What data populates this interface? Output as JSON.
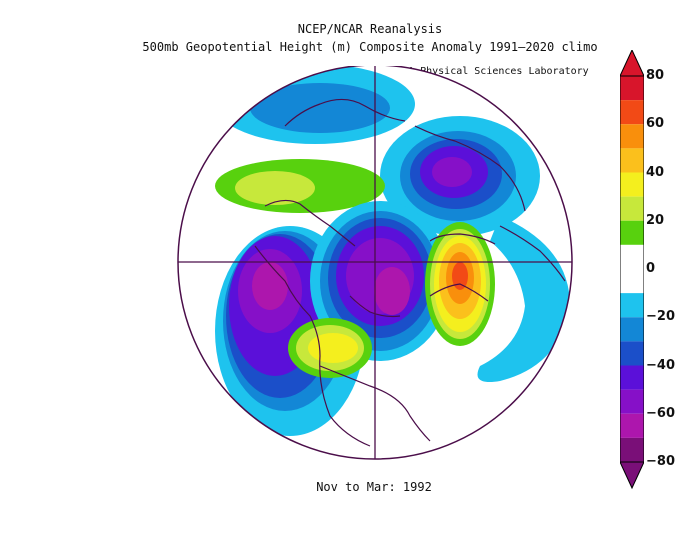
{
  "titles": {
    "line1": "NCEP/NCAR Reanalysis",
    "line2": "500mb Geopotential Height (m) Composite Anomaly 1991–2020 climo",
    "credit": "NOAA Physical Sciences Laboratory",
    "period": "Nov to Mar: 1992"
  },
  "colorbar": {
    "labels": [
      "80",
      "60",
      "40",
      "20",
      "0",
      "−20",
      "−40",
      "−60",
      "−80"
    ],
    "bands": [
      {
        "from": 70,
        "to": 80,
        "color": "#d8152b"
      },
      {
        "from": 60,
        "to": 70,
        "color": "#f24a16"
      },
      {
        "from": 50,
        "to": 60,
        "color": "#f98f0c"
      },
      {
        "from": 40,
        "to": 50,
        "color": "#fbc01c"
      },
      {
        "from": 30,
        "to": 40,
        "color": "#f4ef1e"
      },
      {
        "from": 20,
        "to": 30,
        "color": "#c7e83b"
      },
      {
        "from": 10,
        "to": 20,
        "color": "#58d10e"
      },
      {
        "from": -10,
        "to": 10,
        "color": "#ffffff"
      },
      {
        "from": -20,
        "to": -10,
        "color": "#1ec3ee"
      },
      {
        "from": -30,
        "to": -20,
        "color": "#1387d6"
      },
      {
        "from": -40,
        "to": -30,
        "color": "#1b4fc9"
      },
      {
        "from": -50,
        "to": -40,
        "color": "#5b10d9"
      },
      {
        "from": -60,
        "to": -50,
        "color": "#8610c8"
      },
      {
        "from": -70,
        "to": -60,
        "color": "#ad16ad"
      },
      {
        "from": -80,
        "to": -70,
        "color": "#7a0f78"
      }
    ]
  },
  "map": {
    "projection": "north-polar-stereographic",
    "variable": "500mb geopotential height anomaly (m)",
    "boundary_color": "#4b0e4a"
  }
}
